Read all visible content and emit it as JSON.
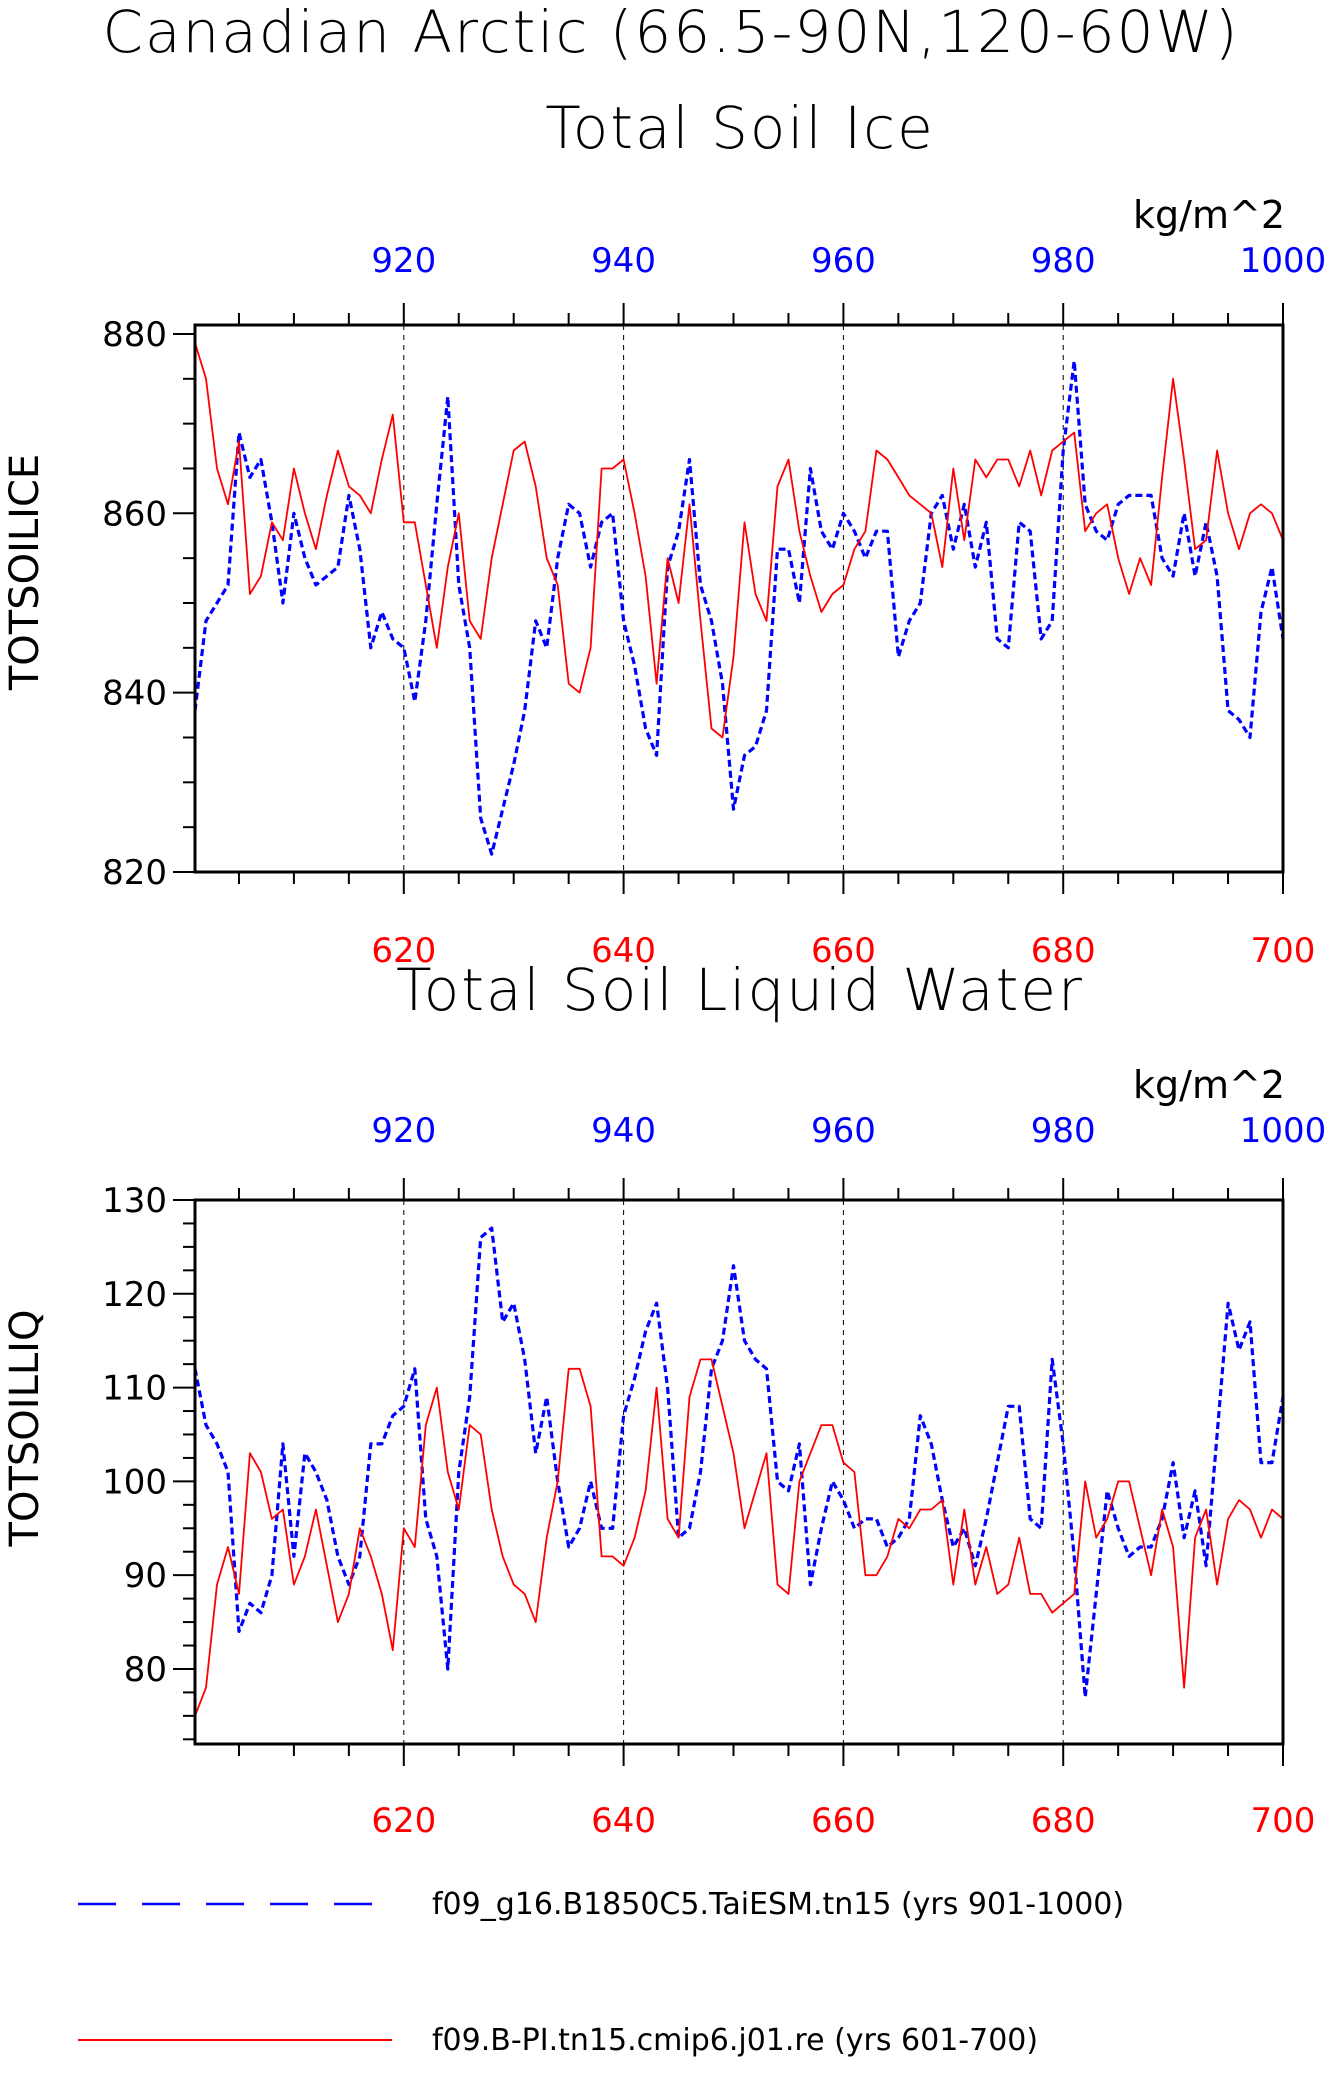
{
  "figure": {
    "title_line1": "Canadian Arctic (66.5-90N,120-60W)",
    "colors": {
      "series_a": "#0000ff",
      "series_b": "#ff0000",
      "axis": "#000000"
    }
  },
  "legend": [
    {
      "label": "f09_g16.B1850C5.TaiESM.tn15 (yrs 901-1000)",
      "color": "#0000ff",
      "style": "dashed"
    },
    {
      "label": "f09.B-PI.tn15.cmip6.j01.re (yrs 601-700)",
      "color": "#ff0000",
      "style": "solid"
    }
  ],
  "chart_data": [
    {
      "type": "line",
      "title": "Total Soil Ice",
      "ylabel": "TOTSOILICE",
      "units": "kg/m^2",
      "ylim": [
        820,
        881
      ],
      "yticks": [
        820,
        840,
        860,
        880
      ],
      "x_bottom_ticks": [
        620,
        640,
        660,
        680,
        700
      ],
      "x_top_ticks": [
        920,
        940,
        960,
        980,
        1000
      ],
      "x_bottom_range": [
        601,
        700
      ],
      "x_top_range": [
        901,
        1000
      ],
      "grid": "vertical dashed at major ticks",
      "series": [
        {
          "label": "f09_g16.B1850C5.TaiESM.tn15 (yrs 901-1000)",
          "axis": "top",
          "color": "#0000ff",
          "style": "dashed",
          "values": [
            838,
            848,
            850,
            852,
            869,
            864,
            866,
            859,
            850,
            860,
            855,
            852,
            853,
            854,
            862,
            856,
            845,
            849,
            846,
            845,
            839,
            848,
            861,
            873,
            852,
            845,
            826,
            822,
            827,
            832,
            838,
            848,
            845,
            855,
            861,
            860,
            854,
            859,
            860,
            848,
            843,
            836,
            833,
            854,
            858,
            866,
            852,
            848,
            841,
            827,
            833,
            834,
            838,
            856,
            856,
            850,
            865,
            858,
            856,
            860,
            858,
            855,
            858,
            858,
            844,
            848,
            850,
            860,
            862,
            856,
            861,
            854,
            859,
            846,
            845,
            859,
            858,
            846,
            848,
            867,
            877,
            861,
            858,
            857,
            861,
            862,
            862,
            862,
            855,
            853,
            860,
            853,
            859,
            853,
            838,
            837,
            835,
            849,
            854,
            846
          ]
        },
        {
          "label": "f09.B-PI.tn15.cmip6.j01.re (yrs 601-700)",
          "axis": "bottom",
          "color": "#ff0000",
          "style": "solid",
          "values": [
            879,
            875,
            865,
            861,
            868,
            851,
            853,
            859,
            857,
            865,
            860,
            856,
            862,
            867,
            863,
            862,
            860,
            866,
            871,
            859,
            859,
            852,
            845,
            854,
            860,
            848,
            846,
            855,
            861,
            867,
            868,
            863,
            855,
            852,
            841,
            840,
            845,
            865,
            865,
            866,
            860,
            853,
            841,
            855,
            850,
            861,
            848,
            836,
            835,
            844,
            859,
            851,
            848,
            863,
            866,
            858,
            853,
            849,
            851,
            852,
            856,
            858,
            867,
            866,
            864,
            862,
            861,
            860,
            854,
            865,
            857,
            866,
            864,
            866,
            866,
            863,
            867,
            862,
            867,
            868,
            869,
            858,
            860,
            861,
            855,
            851,
            855,
            852,
            864,
            875,
            866,
            856,
            857,
            867,
            860,
            856,
            860,
            861,
            860,
            857
          ]
        }
      ]
    },
    {
      "type": "line",
      "title": "Total Soil Liquid Water",
      "ylabel": "TOTSOILLIQ",
      "units": "kg/m^2",
      "ylim": [
        72,
        130
      ],
      "yticks": [
        80,
        90,
        100,
        110,
        120,
        130
      ],
      "x_bottom_ticks": [
        620,
        640,
        660,
        680,
        700
      ],
      "x_top_ticks": [
        920,
        940,
        960,
        980,
        1000
      ],
      "x_bottom_range": [
        601,
        700
      ],
      "x_top_range": [
        901,
        1000
      ],
      "grid": "vertical dashed at major ticks",
      "series": [
        {
          "label": "f09_g16.B1850C5.TaiESM.tn15 (yrs 901-1000)",
          "axis": "top",
          "color": "#0000ff",
          "style": "dashed",
          "values": [
            112,
            106,
            104,
            101,
            84,
            87,
            86,
            90,
            104,
            92,
            103,
            101,
            98,
            92,
            89,
            92,
            104,
            104,
            107,
            108,
            112,
            96,
            92,
            80,
            101,
            109,
            126,
            127,
            117,
            119,
            113,
            103,
            109,
            100,
            93,
            95,
            100,
            95,
            95,
            107,
            111,
            116,
            119,
            110,
            94,
            95,
            101,
            112,
            115,
            123,
            115,
            113,
            112,
            100,
            99,
            104,
            89,
            95,
            100,
            98,
            95,
            96,
            96,
            93,
            94,
            96,
            107,
            104,
            98,
            93,
            95,
            91,
            96,
            102,
            108,
            108,
            96,
            95,
            113,
            104,
            92,
            77,
            88,
            99,
            95,
            92,
            93,
            93,
            96,
            102,
            94,
            99,
            91,
            105,
            119,
            114,
            117,
            102,
            102,
            109
          ]
        },
        {
          "label": "f09.B-PI.tn15.cmip6.j01.re (yrs 601-700)",
          "axis": "bottom",
          "color": "#ff0000",
          "style": "solid",
          "values": [
            75,
            78,
            89,
            93,
            88,
            103,
            101,
            96,
            97,
            89,
            92,
            97,
            91,
            85,
            88,
            95,
            92,
            88,
            82,
            95,
            93,
            106,
            110,
            101,
            97,
            106,
            105,
            97,
            92,
            89,
            88,
            85,
            94,
            100,
            112,
            112,
            108,
            92,
            92,
            91,
            94,
            99,
            110,
            96,
            94,
            109,
            113,
            113,
            108,
            103,
            95,
            99,
            103,
            89,
            88,
            100,
            103,
            106,
            106,
            102,
            101,
            90,
            90,
            92,
            96,
            95,
            97,
            97,
            98,
            89,
            97,
            89,
            93,
            88,
            89,
            94,
            88,
            88,
            86,
            87,
            88,
            100,
            94,
            96,
            100,
            100,
            95,
            90,
            97,
            93,
            78,
            94,
            97,
            89,
            96,
            98,
            97,
            94,
            97,
            96
          ]
        }
      ]
    }
  ]
}
